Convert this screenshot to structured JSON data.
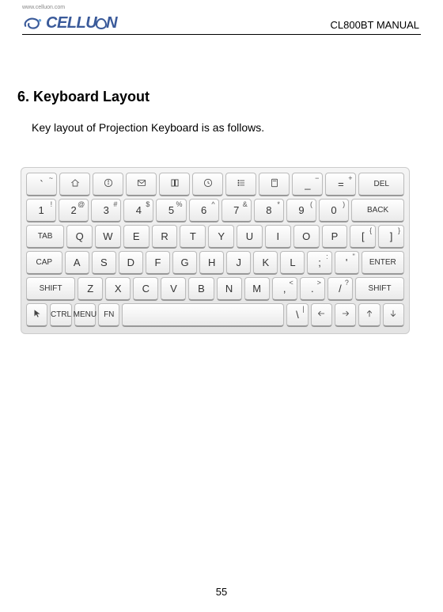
{
  "header": {
    "www": "www.celluon.com",
    "logo_text_parts": [
      "CELLU",
      "N"
    ],
    "logo_color": "#3a5a9a",
    "manual_label": "CL800BT MANUAL"
  },
  "section": {
    "title": "6. Keyboard Layout",
    "body": "Key layout of Projection Keyboard is as follows."
  },
  "keyboard": {
    "rows": [
      {
        "keys": [
          {
            "type": "icon",
            "icon": "tilde",
            "name": "tilde-key",
            "sup": "~"
          },
          {
            "type": "icon",
            "icon": "home",
            "name": "home-key"
          },
          {
            "type": "icon",
            "icon": "info",
            "name": "info-key"
          },
          {
            "type": "icon",
            "icon": "mail",
            "name": "mail-key"
          },
          {
            "type": "icon",
            "icon": "book",
            "name": "book-key"
          },
          {
            "type": "icon",
            "icon": "clock",
            "name": "clock-key"
          },
          {
            "type": "icon",
            "icon": "list",
            "name": "list-key"
          },
          {
            "type": "icon",
            "icon": "calc",
            "name": "calc-key"
          },
          {
            "type": "dual",
            "main": "_",
            "sup": "−",
            "name": "minus-key"
          },
          {
            "type": "dual",
            "main": "=",
            "sup": "+",
            "name": "equals-key"
          },
          {
            "type": "label",
            "label": "DEL",
            "name": "del-key",
            "w": "wide15"
          }
        ]
      },
      {
        "keys": [
          {
            "type": "dual",
            "main": "1",
            "sup": "!",
            "name": "key-1"
          },
          {
            "type": "dual",
            "main": "2",
            "sup": "@",
            "name": "key-2"
          },
          {
            "type": "dual",
            "main": "3",
            "sup": "#",
            "name": "key-3"
          },
          {
            "type": "dual",
            "main": "4",
            "sup": "$",
            "name": "key-4"
          },
          {
            "type": "dual",
            "main": "5",
            "sup": "%",
            "name": "key-5"
          },
          {
            "type": "dual",
            "main": "6",
            "sup": "^",
            "name": "key-6"
          },
          {
            "type": "dual",
            "main": "7",
            "sup": "&",
            "name": "key-7"
          },
          {
            "type": "dual",
            "main": "8",
            "sup": "*",
            "name": "key-8"
          },
          {
            "type": "dual",
            "main": "9",
            "sup": "(",
            "name": "key-9"
          },
          {
            "type": "dual",
            "main": "0",
            "sup": ")",
            "name": "key-0"
          },
          {
            "type": "label",
            "label": "BACK",
            "name": "back-key",
            "w": "wide18"
          }
        ]
      },
      {
        "keys": [
          {
            "type": "label",
            "label": "TAB",
            "name": "tab-key",
            "w": "wide15"
          },
          {
            "type": "main",
            "main": "Q",
            "name": "key-q"
          },
          {
            "type": "main",
            "main": "W",
            "name": "key-w"
          },
          {
            "type": "main",
            "main": "E",
            "name": "key-e"
          },
          {
            "type": "main",
            "main": "R",
            "name": "key-r"
          },
          {
            "type": "main",
            "main": "T",
            "name": "key-t"
          },
          {
            "type": "main",
            "main": "Y",
            "name": "key-y"
          },
          {
            "type": "main",
            "main": "U",
            "name": "key-u"
          },
          {
            "type": "main",
            "main": "I",
            "name": "key-i"
          },
          {
            "type": "main",
            "main": "O",
            "name": "key-o"
          },
          {
            "type": "main",
            "main": "P",
            "name": "key-p"
          },
          {
            "type": "dual",
            "main": "[",
            "sup": "{",
            "name": "key-lbracket"
          },
          {
            "type": "dual",
            "main": "]",
            "sup": "}",
            "name": "key-rbracket"
          }
        ]
      },
      {
        "keys": [
          {
            "type": "label",
            "label": "CAP",
            "name": "cap-key",
            "w": "wide15"
          },
          {
            "type": "main",
            "main": "A",
            "name": "key-a"
          },
          {
            "type": "main",
            "main": "S",
            "name": "key-s"
          },
          {
            "type": "main",
            "main": "D",
            "name": "key-d"
          },
          {
            "type": "main",
            "main": "F",
            "name": "key-f"
          },
          {
            "type": "main",
            "main": "G",
            "name": "key-g"
          },
          {
            "type": "main",
            "main": "H",
            "name": "key-h"
          },
          {
            "type": "main",
            "main": "J",
            "name": "key-j"
          },
          {
            "type": "main",
            "main": "K",
            "name": "key-k"
          },
          {
            "type": "main",
            "main": "L",
            "name": "key-l"
          },
          {
            "type": "dual",
            "main": ";",
            "sup": ":",
            "name": "key-semicolon"
          },
          {
            "type": "dual",
            "main": "'",
            "sup": "\"",
            "name": "key-quote"
          },
          {
            "type": "label",
            "label": "ENTER",
            "name": "enter-key",
            "w": "wide18"
          }
        ]
      },
      {
        "keys": [
          {
            "type": "label",
            "label": "SHIFT",
            "name": "shift-left-key",
            "w": "wide2"
          },
          {
            "type": "main",
            "main": "Z",
            "name": "key-z"
          },
          {
            "type": "main",
            "main": "X",
            "name": "key-x"
          },
          {
            "type": "main",
            "main": "C",
            "name": "key-c"
          },
          {
            "type": "main",
            "main": "V",
            "name": "key-v"
          },
          {
            "type": "main",
            "main": "B",
            "name": "key-b"
          },
          {
            "type": "main",
            "main": "N",
            "name": "key-n"
          },
          {
            "type": "main",
            "main": "M",
            "name": "key-m"
          },
          {
            "type": "dual",
            "main": ",",
            "sup": "<",
            "name": "key-comma"
          },
          {
            "type": "dual",
            "main": ".",
            "sup": ">",
            "name": "key-period"
          },
          {
            "type": "dual",
            "main": "/",
            "sup": "?",
            "name": "key-slash"
          },
          {
            "type": "label",
            "label": "SHIFT",
            "name": "shift-right-key",
            "w": "wide2"
          }
        ]
      },
      {
        "keys": [
          {
            "type": "icon",
            "icon": "cursor",
            "name": "cursor-key"
          },
          {
            "type": "label",
            "label": "CTRL",
            "name": "ctrl-key"
          },
          {
            "type": "label",
            "label": "MENU",
            "name": "menu-key"
          },
          {
            "type": "label",
            "label": "FN",
            "name": "fn-key"
          },
          {
            "type": "space",
            "name": "space-key",
            "w": "wide8"
          },
          {
            "type": "dual",
            "main": "\\",
            "sup": "|",
            "name": "key-backslash"
          },
          {
            "type": "arrow",
            "dir": "left",
            "name": "arrow-left-key"
          },
          {
            "type": "arrow",
            "dir": "right",
            "name": "arrow-right-key"
          },
          {
            "type": "arrow",
            "dir": "up",
            "name": "arrow-up-key"
          },
          {
            "type": "arrow",
            "dir": "down",
            "name": "arrow-down-key"
          }
        ]
      }
    ]
  },
  "page_number": "55"
}
